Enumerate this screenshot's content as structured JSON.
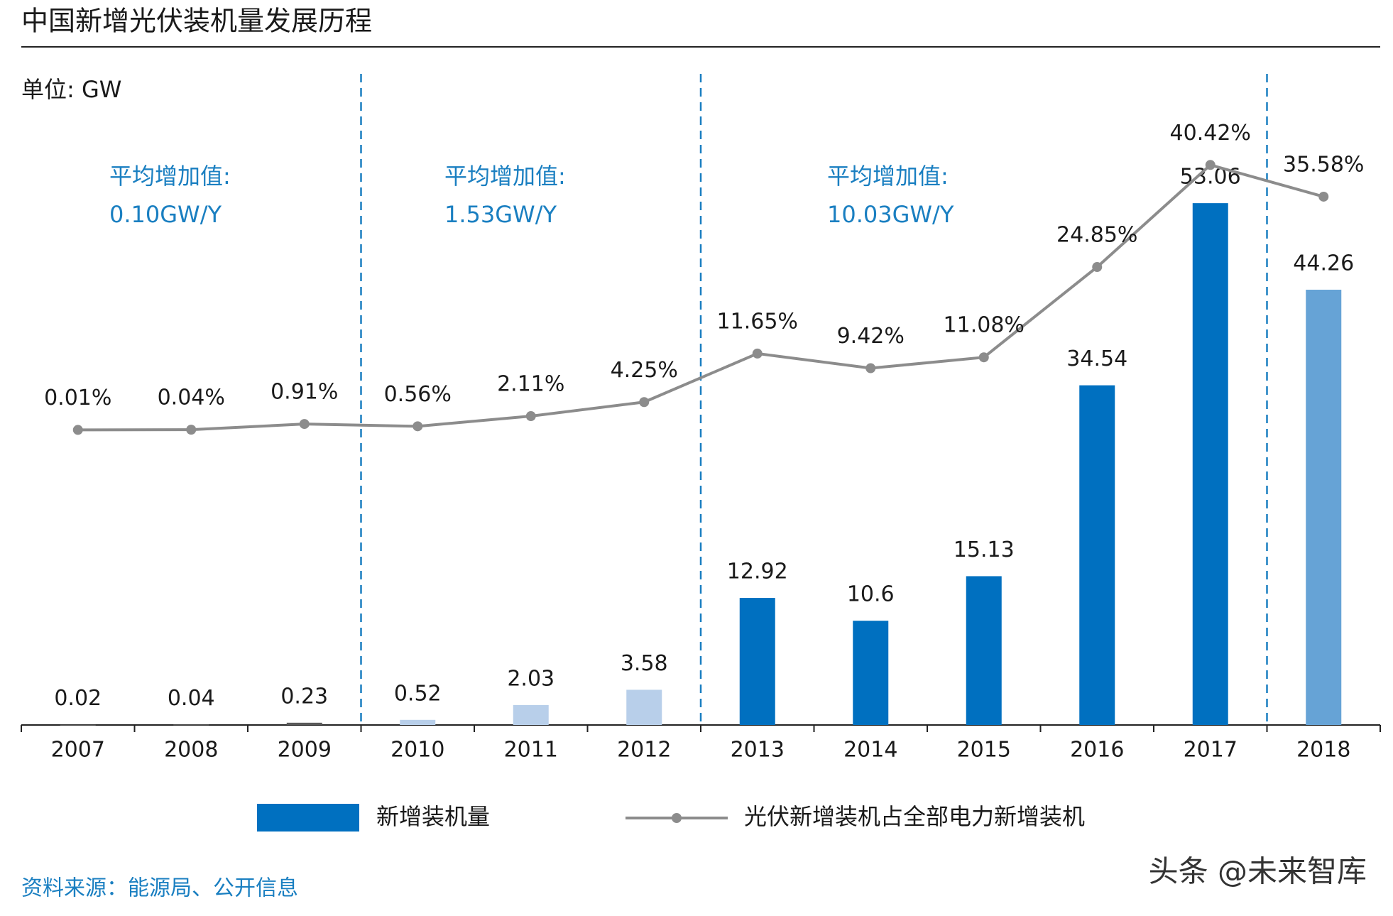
{
  "chart_data": {
    "type": "bar-line",
    "title": "中国新增光伏装机量发展历程",
    "unit_label": "单位: GW",
    "categories": [
      "2007",
      "2008",
      "2009",
      "2010",
      "2011",
      "2012",
      "2013",
      "2014",
      "2015",
      "2016",
      "2017",
      "2018"
    ],
    "series": [
      {
        "name": "新增装机量",
        "type": "bar",
        "color": "#0070c0",
        "colors": [
          "#595959",
          "#595959",
          "#595959",
          "#b8cfea",
          "#b8cfea",
          "#b8cfea",
          "#0070c0",
          "#0070c0",
          "#0070c0",
          "#0070c0",
          "#0070c0",
          "#66a3d6"
        ],
        "values": [
          0.02,
          0.04,
          0.23,
          0.52,
          2.03,
          3.58,
          12.92,
          10.6,
          15.13,
          34.54,
          53.06,
          44.26
        ]
      },
      {
        "name": "光伏新增装机占全部电力新增装机",
        "type": "line",
        "color": "#8c8c8c",
        "axis": "y2",
        "values": [
          0.01,
          0.04,
          0.91,
          0.56,
          2.11,
          4.25,
          11.65,
          9.42,
          11.08,
          24.85,
          40.42,
          35.58
        ],
        "value_labels": [
          "0.01%",
          "0.04%",
          "0.91%",
          "0.56%",
          "2.11%",
          "4.25%",
          "11.65%",
          "9.42%",
          "11.08%",
          "24.85%",
          "40.42%",
          "35.58%"
        ]
      }
    ],
    "annotations": [
      {
        "label": "平均增加值:",
        "text": "0.10GW/Y"
      },
      {
        "label": "平均增加值:",
        "text": "1.53GW/Y"
      },
      {
        "label": "平均增加值:",
        "text": "10.03GW/Y"
      }
    ],
    "ylim": [
      0,
      60
    ],
    "y2lim": [
      -45,
      45
    ],
    "source": "资料来源：能源局、公开信息",
    "watermark": "头条 @未来智库"
  }
}
